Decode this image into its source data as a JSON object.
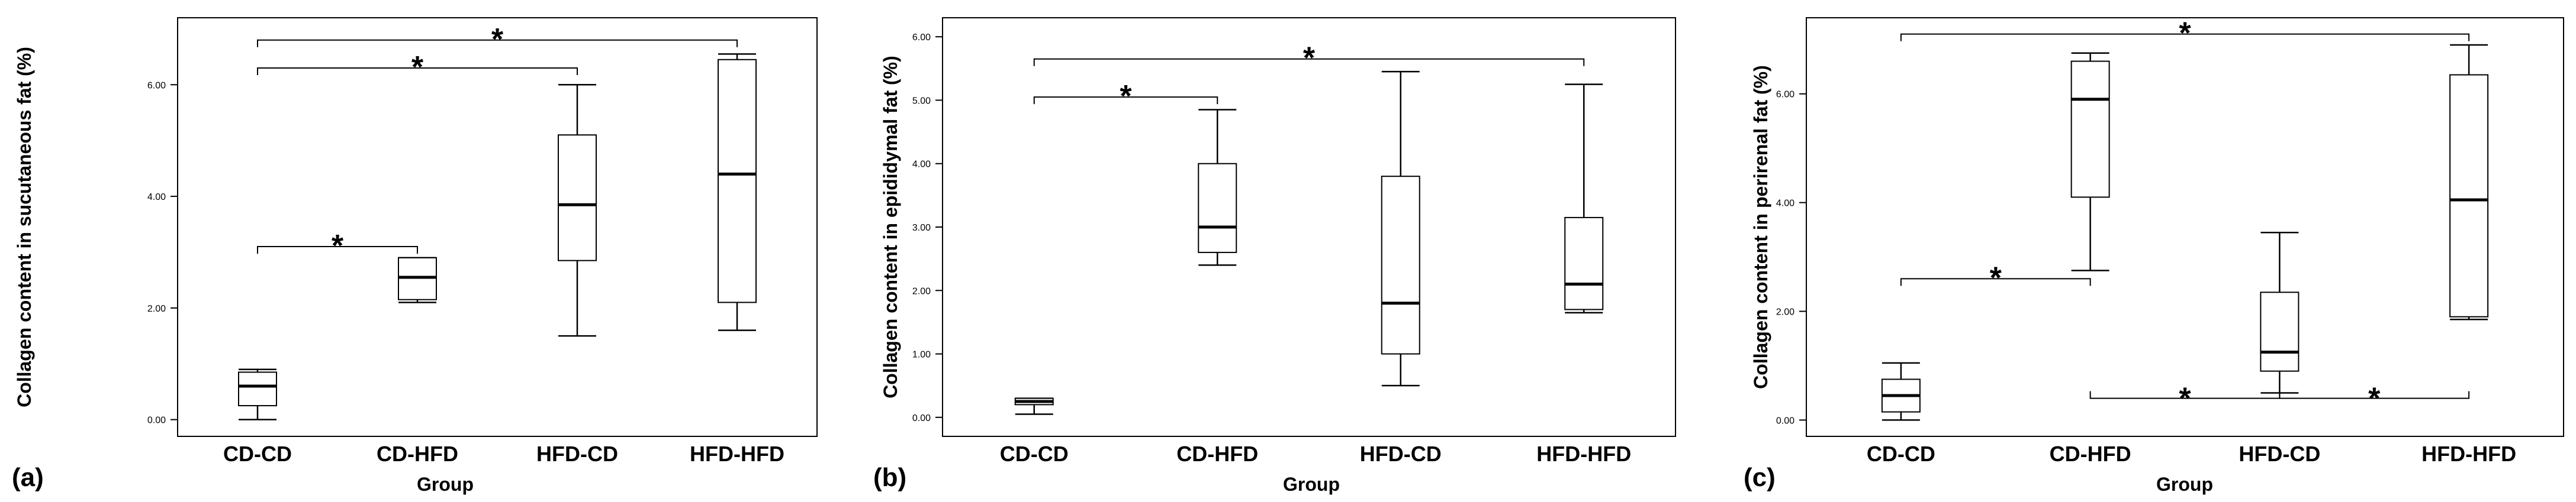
{
  "chart_data": [
    {
      "id": "a",
      "panel_label": "(a)",
      "type": "box",
      "xlabel": "Group",
      "ylabel": "Collagen content in sucutaneous fat (%)",
      "ylim": [
        -0.3,
        7.2
      ],
      "yticks": [
        0,
        2,
        4,
        6
      ],
      "ytick_labels": [
        "0.00",
        "2.00",
        "4.00",
        "6.00"
      ],
      "categories": [
        "CD-CD",
        "CD-HFD",
        "HFD-CD",
        "HFD-HFD"
      ],
      "boxes": [
        {
          "min": 0.0,
          "q1": 0.25,
          "median": 0.6,
          "q3": 0.85,
          "max": 0.9
        },
        {
          "min": 2.1,
          "q1": 2.15,
          "median": 2.55,
          "q3": 2.9,
          "max": 2.9
        },
        {
          "min": 1.5,
          "q1": 2.85,
          "median": 3.85,
          "q3": 5.1,
          "max": 6.0
        },
        {
          "min": 1.6,
          "q1": 2.1,
          "median": 4.4,
          "q3": 6.45,
          "max": 6.55
        }
      ],
      "brackets": [
        {
          "from": 0,
          "to": 1,
          "y": 3.1,
          "side": "up",
          "label": "*"
        },
        {
          "from": 0,
          "to": 2,
          "y": 6.3,
          "side": "up",
          "label": "*"
        },
        {
          "from": 0,
          "to": 3,
          "y": 6.8,
          "side": "up",
          "label": "*"
        }
      ]
    },
    {
      "id": "b",
      "panel_label": "(b)",
      "type": "box",
      "xlabel": "Group",
      "ylabel": "Collagen content in epididymal fat (%)",
      "ylim": [
        -0.3,
        6.3
      ],
      "yticks": [
        0,
        1,
        2,
        3,
        4,
        5,
        6
      ],
      "ytick_labels": [
        "0.00",
        "1.00",
        "2.00",
        "3.00",
        "4.00",
        "5.00",
        "6.00"
      ],
      "categories": [
        "CD-CD",
        "CD-HFD",
        "HFD-CD",
        "HFD-HFD"
      ],
      "boxes": [
        {
          "min": 0.05,
          "q1": 0.2,
          "median": 0.25,
          "q3": 0.3,
          "max": 0.3
        },
        {
          "min": 2.4,
          "q1": 2.6,
          "median": 3.0,
          "q3": 4.0,
          "max": 4.85
        },
        {
          "min": 0.5,
          "q1": 1.0,
          "median": 1.8,
          "q3": 3.8,
          "max": 5.45
        },
        {
          "min": 1.65,
          "q1": 1.7,
          "median": 2.1,
          "q3": 3.15,
          "max": 5.25
        }
      ],
      "brackets": [
        {
          "from": 0,
          "to": 1,
          "y": 5.05,
          "side": "up",
          "label": "*"
        },
        {
          "from": 0,
          "to": 3,
          "y": 5.65,
          "side": "up",
          "label": "*"
        }
      ]
    },
    {
      "id": "c",
      "panel_label": "(c)",
      "type": "box",
      "xlabel": "Group",
      "ylabel": "Collagen content in perirenal fat (%)",
      "ylim": [
        -0.3,
        7.4
      ],
      "yticks": [
        0,
        2,
        4,
        6
      ],
      "ytick_labels": [
        "0.00",
        "2.00",
        "4.00",
        "6.00"
      ],
      "categories": [
        "CD-CD",
        "CD-HFD",
        "HFD-CD",
        "HFD-HFD"
      ],
      "boxes": [
        {
          "min": 0.0,
          "q1": 0.15,
          "median": 0.45,
          "q3": 0.75,
          "max": 1.05
        },
        {
          "min": 2.75,
          "q1": 4.1,
          "median": 5.9,
          "q3": 6.6,
          "max": 6.75
        },
        {
          "min": 0.5,
          "q1": 0.9,
          "median": 1.25,
          "q3": 2.35,
          "max": 3.45
        },
        {
          "min": 1.85,
          "q1": 1.9,
          "median": 4.05,
          "q3": 6.35,
          "max": 6.9
        }
      ],
      "brackets": [
        {
          "from": 0,
          "to": 3,
          "y": 7.1,
          "side": "up",
          "label": "*"
        },
        {
          "from": 0,
          "to": 1,
          "y": 2.6,
          "side": "up",
          "label": "*"
        },
        {
          "from": 1,
          "to": 2,
          "y": 0.4,
          "side": "down",
          "label": "*"
        },
        {
          "from": 2,
          "to": 3,
          "y": 0.4,
          "side": "down",
          "label": "*"
        }
      ]
    }
  ]
}
